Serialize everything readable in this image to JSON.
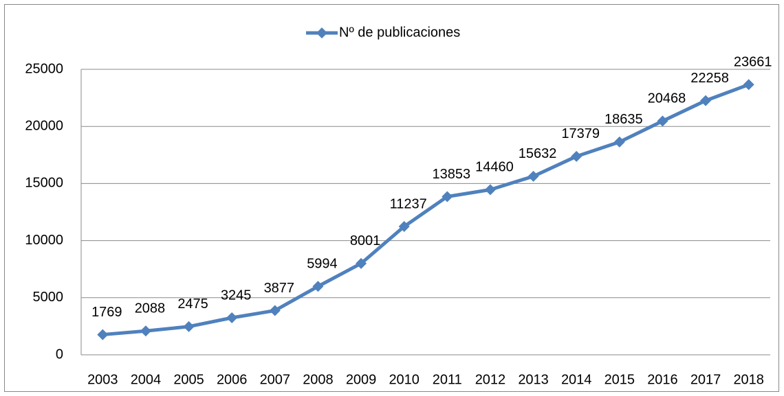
{
  "chart_data": {
    "type": "line",
    "categories": [
      "2003",
      "2004",
      "2005",
      "2006",
      "2007",
      "2008",
      "2009",
      "2010",
      "2011",
      "2012",
      "2013",
      "2014",
      "2015",
      "2016",
      "2017",
      "2018"
    ],
    "series": [
      {
        "name": "Nº de publicaciones",
        "color": "#4f81bd",
        "values": [
          1769,
          2088,
          2475,
          3245,
          3877,
          5994,
          8001,
          11237,
          13853,
          14460,
          15632,
          17379,
          18635,
          20468,
          22258,
          23661
        ]
      }
    ],
    "ylim": [
      0,
      25000
    ],
    "yticks": [
      0,
      5000,
      10000,
      15000,
      20000,
      25000
    ],
    "grid": true,
    "legend": "top"
  }
}
